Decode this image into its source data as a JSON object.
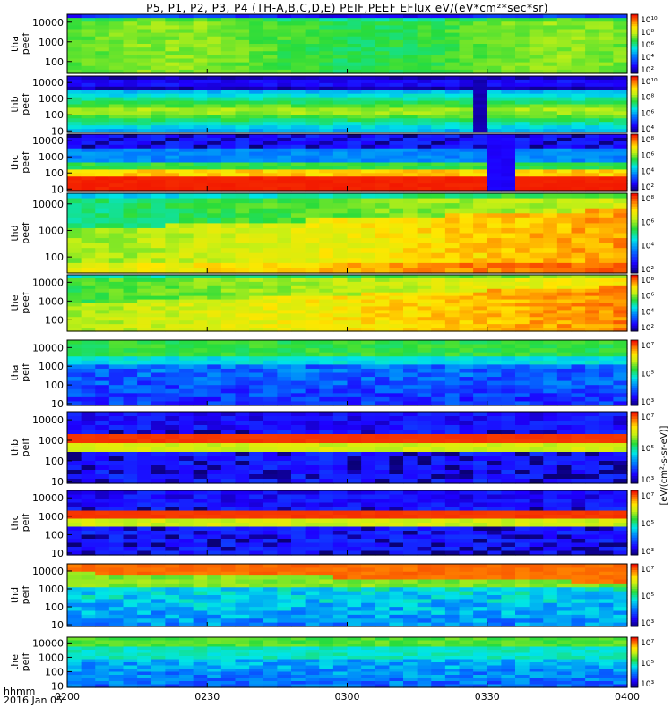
{
  "title": "P5, P1, P2, P3, P4 (TH-A,B,C,D,E) PEIF,PEEF EFlux eV/(eV*cm²*sec*sr)",
  "footer": {
    "line1": "hhmm",
    "line2": "2016 Jan 05"
  },
  "time_labels": [
    "0200",
    "0230",
    "0300",
    "0330",
    "0400"
  ],
  "colorbar_unit": "[eV/(cm²-s-sr-eV)]",
  "chart_data": {
    "type": "heatmap",
    "x_ticks": [
      "0200",
      "0230",
      "0300",
      "0330",
      "0400"
    ],
    "y_scale": "log",
    "panels": [
      {
        "label": "tha\npeef",
        "y_ticks": [
          "10000",
          "1000",
          "100"
        ],
        "cbar_ticks": [
          "10¹⁰",
          "10⁸",
          "10⁶",
          "10⁴",
          "10²"
        ]
      },
      {
        "label": "thb\npeef",
        "y_ticks": [
          "10000",
          "1000",
          "100",
          "10"
        ],
        "cbar_ticks": [
          "10¹⁰",
          "10⁸",
          "10⁶",
          "10⁴"
        ]
      },
      {
        "label": "thc\npeef",
        "y_ticks": [
          "10000",
          "1000",
          "100",
          "10"
        ],
        "cbar_ticks": [
          "10⁸",
          "10⁶",
          "10⁴",
          "10²"
        ]
      },
      {
        "label": "thd\npeef",
        "y_ticks": [
          "10000",
          "1000",
          "100"
        ],
        "cbar_ticks": [
          "10⁸",
          "10⁶",
          "10⁴",
          "10²"
        ]
      },
      {
        "label": "the\npeef",
        "y_ticks": [
          "10000",
          "1000",
          "100"
        ],
        "cbar_ticks": [
          "10⁸",
          "10⁶",
          "10⁴",
          "10²"
        ]
      },
      {
        "label": "tha\npeif",
        "y_ticks": [
          "10000",
          "1000",
          "100",
          "10"
        ],
        "cbar_ticks": [
          "10⁷",
          "10⁵",
          "10³"
        ]
      },
      {
        "label": "thb\npeif",
        "y_ticks": [
          "10000",
          "1000",
          "100",
          "10"
        ],
        "cbar_ticks": [
          "10⁷",
          "10⁵",
          "10³"
        ]
      },
      {
        "label": "thc\npeif",
        "y_ticks": [
          "10000",
          "1000",
          "100",
          "10"
        ],
        "cbar_ticks": [
          "10⁷",
          "10⁵",
          "10³"
        ]
      },
      {
        "label": "thd\npeif",
        "y_ticks": [
          "10000",
          "1000",
          "100",
          "10"
        ],
        "cbar_ticks": [
          "10⁷",
          "10⁵",
          "10³"
        ]
      },
      {
        "label": "the\npeif",
        "y_ticks": [
          "10000",
          "1000",
          "100",
          "10"
        ],
        "cbar_ticks": [
          "10⁷",
          "10⁵",
          "10³"
        ]
      }
    ]
  }
}
